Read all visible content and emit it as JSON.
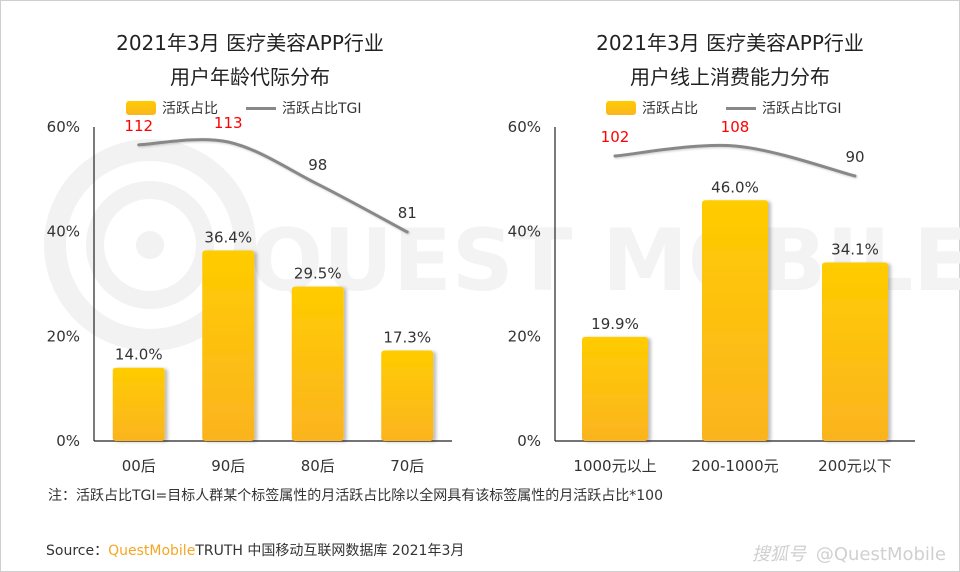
{
  "watermark_text": "QUEST MOBILE",
  "legend": {
    "bar_label": "活跃占比",
    "line_label": "活跃占比TGI"
  },
  "colors": {
    "bar_top": "#ffcc00",
    "bar_bottom": "#fbb420",
    "line": "#888888",
    "highlight_label": "#ff0000",
    "normal_label": "#333333",
    "brand": "#f5a623"
  },
  "note": "注：活跃占比TGI=目标人群某个标签属性的月活跃占比除以全网具有该标签属性的月活跃占比*100",
  "source": {
    "prefix": "Source：",
    "brand": "QuestMobile",
    "rest": "TRUTH 中国移动互联网数据库 2021年3月"
  },
  "credit": {
    "platform": "搜狐号",
    "handle": "@QuestMobile"
  },
  "chart_data": [
    {
      "type": "bar",
      "title_line1": "2021年3月 医疗美容APP行业",
      "title_line2": "用户年龄代际分布",
      "categories": [
        "00后",
        "90后",
        "80后",
        "70后"
      ],
      "series": [
        {
          "name": "活跃占比",
          "type": "bar",
          "values": [
            14.0,
            36.4,
            29.5,
            17.3
          ],
          "labels": [
            "14.0%",
            "36.4%",
            "29.5%",
            "17.3%"
          ]
        },
        {
          "name": "活跃占比TGI",
          "type": "line",
          "values": [
            112,
            113,
            98,
            81
          ],
          "highlight": [
            true,
            true,
            false,
            false
          ]
        }
      ],
      "yticks": [
        "0%",
        "20%",
        "40%",
        "60%"
      ],
      "ylim": [
        0,
        60
      ],
      "xlabel": "",
      "ylabel": "",
      "legend_position": "top",
      "grid": false
    },
    {
      "type": "bar",
      "title_line1": "2021年3月 医疗美容APP行业",
      "title_line2": "用户线上消费能力分布",
      "categories": [
        "1000元以上",
        "200-1000元",
        "200元以下"
      ],
      "series": [
        {
          "name": "活跃占比",
          "type": "bar",
          "values": [
            19.9,
            46.0,
            34.1
          ],
          "labels": [
            "19.9%",
            "46.0%",
            "34.1%"
          ]
        },
        {
          "name": "活跃占比TGI",
          "type": "line",
          "values": [
            102,
            108,
            90
          ],
          "highlight": [
            true,
            true,
            false
          ]
        }
      ],
      "yticks": [
        "0%",
        "20%",
        "40%",
        "60%"
      ],
      "ylim": [
        0,
        60
      ],
      "xlabel": "",
      "ylabel": "",
      "legend_position": "top",
      "grid": false
    }
  ]
}
